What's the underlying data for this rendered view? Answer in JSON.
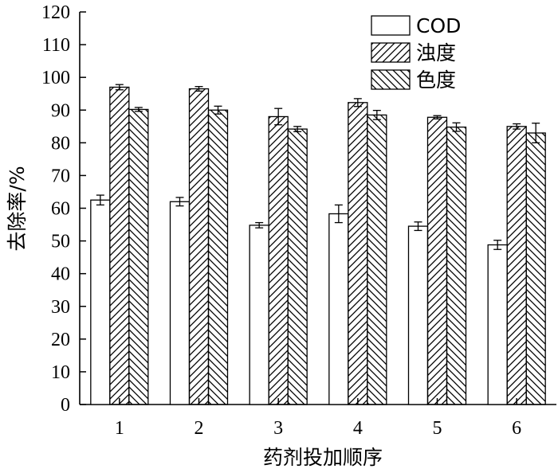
{
  "chart_data": {
    "type": "bar",
    "categories": [
      "1",
      "2",
      "3",
      "4",
      "5",
      "6"
    ],
    "series": [
      {
        "name": "COD",
        "values": [
          62.5,
          62.0,
          54.8,
          58.3,
          54.5,
          48.8
        ],
        "errors": [
          1.5,
          1.3,
          0.8,
          2.7,
          1.3,
          1.4
        ],
        "pattern": "none"
      },
      {
        "name": "浊度",
        "values": [
          97.0,
          96.5,
          88.0,
          92.3,
          87.8,
          85.0
        ],
        "errors": [
          0.8,
          0.7,
          2.5,
          1.2,
          0.5,
          0.8
        ],
        "pattern": "forward-hatch"
      },
      {
        "name": "色度",
        "values": [
          90.2,
          90.0,
          84.2,
          88.5,
          84.8,
          83.0
        ],
        "errors": [
          0.6,
          1.2,
          0.8,
          1.4,
          1.3,
          3.0
        ],
        "pattern": "back-hatch"
      }
    ],
    "xlabel": "药剂投加顺序",
    "ylabel": "去除率/%",
    "ylim": [
      0,
      120
    ],
    "yticks": [
      "0",
      "10",
      "20",
      "30",
      "40",
      "50",
      "60",
      "70",
      "80",
      "90",
      "100",
      "110",
      "120"
    ],
    "grid": false,
    "legend_position": "top-right",
    "colors": {
      "bar_fill": "#ffffff",
      "stroke": "#000000"
    }
  }
}
